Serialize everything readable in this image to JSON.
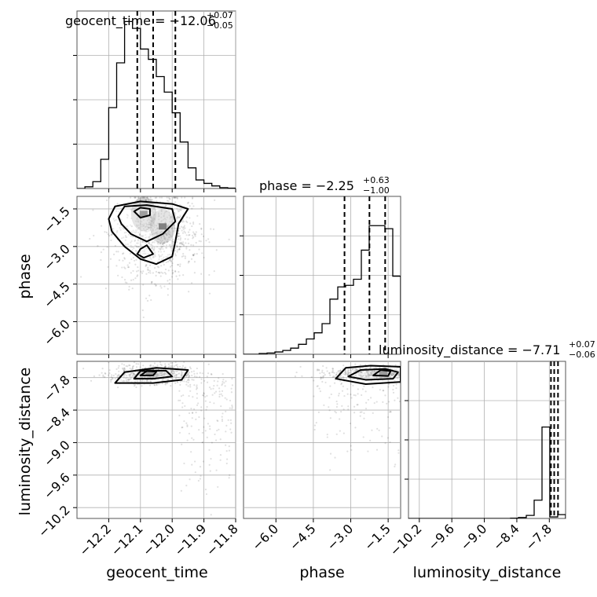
{
  "chart_data": [
    {
      "type": "histogram",
      "panel": "geocent_time",
      "title": "geocent_time = −12.06",
      "title_upper": "+0.07",
      "title_lower": "−0.05",
      "xlim": [
        -12.3,
        -11.8
      ],
      "bin_edges": [
        -12.3,
        -12.275,
        -12.25,
        -12.225,
        -12.2,
        -12.175,
        -12.15,
        -12.125,
        -12.1,
        -12.075,
        -12.05,
        -12.025,
        -12.0,
        -11.975,
        -11.95,
        -11.925,
        -11.9,
        -11.875,
        -11.85,
        -11.825,
        -11.8
      ],
      "counts": [
        0.0,
        0.01,
        0.04,
        0.17,
        0.47,
        0.73,
        0.97,
        0.93,
        0.81,
        0.75,
        0.65,
        0.56,
        0.44,
        0.27,
        0.12,
        0.05,
        0.03,
        0.015,
        0.005,
        0.002
      ],
      "quantiles": [
        -12.11,
        -12.06,
        -11.99
      ]
    },
    {
      "type": "histogram",
      "panel": "phase",
      "title": "phase = −2.25",
      "title_upper": "+0.63",
      "title_lower": "−1.00",
      "xlim": [
        -7.3,
        -1.0
      ],
      "bin_edges": [
        -7.3,
        -6.985,
        -6.67,
        -6.355,
        -6.04,
        -5.725,
        -5.41,
        -5.095,
        -4.78,
        -4.465,
        -4.15,
        -3.835,
        -3.52,
        -3.205,
        -2.89,
        -2.575,
        -2.26,
        -1.945,
        -1.63,
        -1.315,
        -1.0
      ],
      "counts": [
        0.0,
        0.0,
        0.005,
        0.008,
        0.015,
        0.025,
        0.04,
        0.065,
        0.1,
        0.14,
        0.2,
        0.36,
        0.44,
        0.45,
        0.49,
        0.68,
        0.84,
        0.84,
        0.82,
        0.51
      ],
      "quantiles": [
        -3.25,
        -2.25,
        -1.62
      ]
    },
    {
      "type": "histogram",
      "panel": "luminosity_distance",
      "title": "luminosity_distance = −7.71",
      "title_upper": "+0.07",
      "title_lower": "−0.06",
      "xlim": [
        -10.4,
        -7.5
      ],
      "bin_edges": [
        -10.4,
        -10.255,
        -10.11,
        -9.965,
        -9.82,
        -9.675,
        -9.53,
        -9.385,
        -9.24,
        -9.095,
        -8.95,
        -8.805,
        -8.66,
        -8.515,
        -8.37,
        -8.225,
        -8.08,
        -7.935,
        -7.79,
        -7.645,
        -7.5
      ],
      "counts": [
        0,
        0,
        0,
        0,
        0,
        0,
        0,
        0,
        0,
        0,
        0,
        0,
        0,
        0.002,
        0.006,
        0.02,
        0.12,
        0.6,
        0.01,
        0.025
      ],
      "quantiles": [
        -7.77,
        -7.71,
        -7.64
      ]
    },
    {
      "type": "scatter",
      "panel": "phase vs geocent_time",
      "xlim": [
        -12.3,
        -11.8
      ],
      "ylim": [
        -7.3,
        -1.0
      ],
      "density_centers": [
        {
          "x": -12.09,
          "y": -1.7
        },
        {
          "x": -12.03,
          "y": -2.2
        }
      ],
      "contours": [
        [
          [
            -12.2,
            -1.9
          ],
          [
            -12.18,
            -1.4
          ],
          [
            -12.1,
            -1.2
          ],
          [
            -12.0,
            -1.3
          ],
          [
            -11.95,
            -1.5
          ],
          [
            -11.98,
            -2.1
          ],
          [
            -11.99,
            -2.8
          ],
          [
            -12.0,
            -3.4
          ],
          [
            -12.05,
            -3.7
          ],
          [
            -12.1,
            -3.5
          ],
          [
            -12.15,
            -3.0
          ],
          [
            -12.19,
            -2.4
          ]
        ],
        [
          [
            -12.17,
            -1.8
          ],
          [
            -12.15,
            -1.4
          ],
          [
            -12.08,
            -1.35
          ],
          [
            -12.0,
            -1.5
          ],
          [
            -11.99,
            -2.0
          ],
          [
            -12.03,
            -2.5
          ],
          [
            -12.08,
            -2.8
          ],
          [
            -12.13,
            -2.5
          ],
          [
            -12.16,
            -2.1
          ]
        ],
        [
          [
            -12.12,
            -1.6
          ],
          [
            -12.1,
            -1.45
          ],
          [
            -12.07,
            -1.5
          ],
          [
            -12.07,
            -1.75
          ],
          [
            -12.1,
            -1.85
          ]
        ],
        [
          [
            -12.1,
            -3.1
          ],
          [
            -12.08,
            -2.95
          ],
          [
            -12.06,
            -3.3
          ],
          [
            -12.09,
            -3.45
          ],
          [
            -12.11,
            -3.3
          ]
        ]
      ]
    },
    {
      "type": "scatter",
      "panel": "luminosity_distance vs geocent_time",
      "xlim": [
        -12.3,
        -11.8
      ],
      "ylim": [
        -10.4,
        -7.5
      ],
      "density_centers": [
        {
          "x": -12.07,
          "y": -7.71
        }
      ],
      "contours": [
        [
          [
            -12.18,
            -7.9
          ],
          [
            -12.15,
            -7.7
          ],
          [
            -12.05,
            -7.62
          ],
          [
            -11.95,
            -7.66
          ],
          [
            -11.97,
            -7.84
          ],
          [
            -12.06,
            -7.9
          ]
        ],
        [
          [
            -12.12,
            -7.82
          ],
          [
            -12.1,
            -7.68
          ],
          [
            -12.02,
            -7.67
          ],
          [
            -12.0,
            -7.78
          ],
          [
            -12.06,
            -7.82
          ]
        ],
        [
          [
            -12.1,
            -7.76
          ],
          [
            -12.08,
            -7.68
          ],
          [
            -12.05,
            -7.69
          ],
          [
            -12.06,
            -7.76
          ]
        ]
      ]
    },
    {
      "type": "scatter",
      "panel": "luminosity_distance vs phase",
      "xlim": [
        -7.3,
        -1.0
      ],
      "ylim": [
        -10.4,
        -7.5
      ],
      "density_centers": [
        {
          "x": -1.7,
          "y": -7.71
        }
      ],
      "contours": [
        [
          [
            -3.6,
            -7.82
          ],
          [
            -3.2,
            -7.62
          ],
          [
            -2.2,
            -7.58
          ],
          [
            -1.0,
            -7.6
          ],
          [
            -1.0,
            -7.88
          ],
          [
            -2.4,
            -7.92
          ]
        ],
        [
          [
            -3.1,
            -7.78
          ],
          [
            -2.6,
            -7.66
          ],
          [
            -1.6,
            -7.64
          ],
          [
            -1.1,
            -7.7
          ],
          [
            -1.3,
            -7.82
          ],
          [
            -2.4,
            -7.84
          ]
        ],
        [
          [
            -2.1,
            -7.76
          ],
          [
            -1.8,
            -7.66
          ],
          [
            -1.4,
            -7.68
          ],
          [
            -1.5,
            -7.77
          ]
        ]
      ]
    }
  ],
  "axes": {
    "geocent_time": {
      "label": "geocent_time",
      "ticks": [
        -12.2,
        -12.1,
        -12.0,
        -11.9,
        -11.8
      ],
      "tick_labels": [
        "−12.2",
        "−12.1",
        "−12.0",
        "−11.9",
        "−11.8"
      ]
    },
    "phase": {
      "label": "phase",
      "ticks": [
        -6.0,
        -4.5,
        -3.0,
        -1.5
      ],
      "tick_labels": [
        "−6.0",
        "−4.5",
        "−3.0",
        "−1.5"
      ]
    },
    "luminosity_distance": {
      "label": "luminosity_distance",
      "ticks": [
        -10.2,
        -9.6,
        -9.0,
        -8.4,
        -7.8
      ],
      "tick_labels": [
        "−10.2",
        "−9.6",
        "−9.0",
        "−8.4",
        "−7.8"
      ]
    }
  },
  "colors": {
    "line": "#000000",
    "grid": "#b0b0b0",
    "point": "#000000",
    "frame": "#555555"
  }
}
